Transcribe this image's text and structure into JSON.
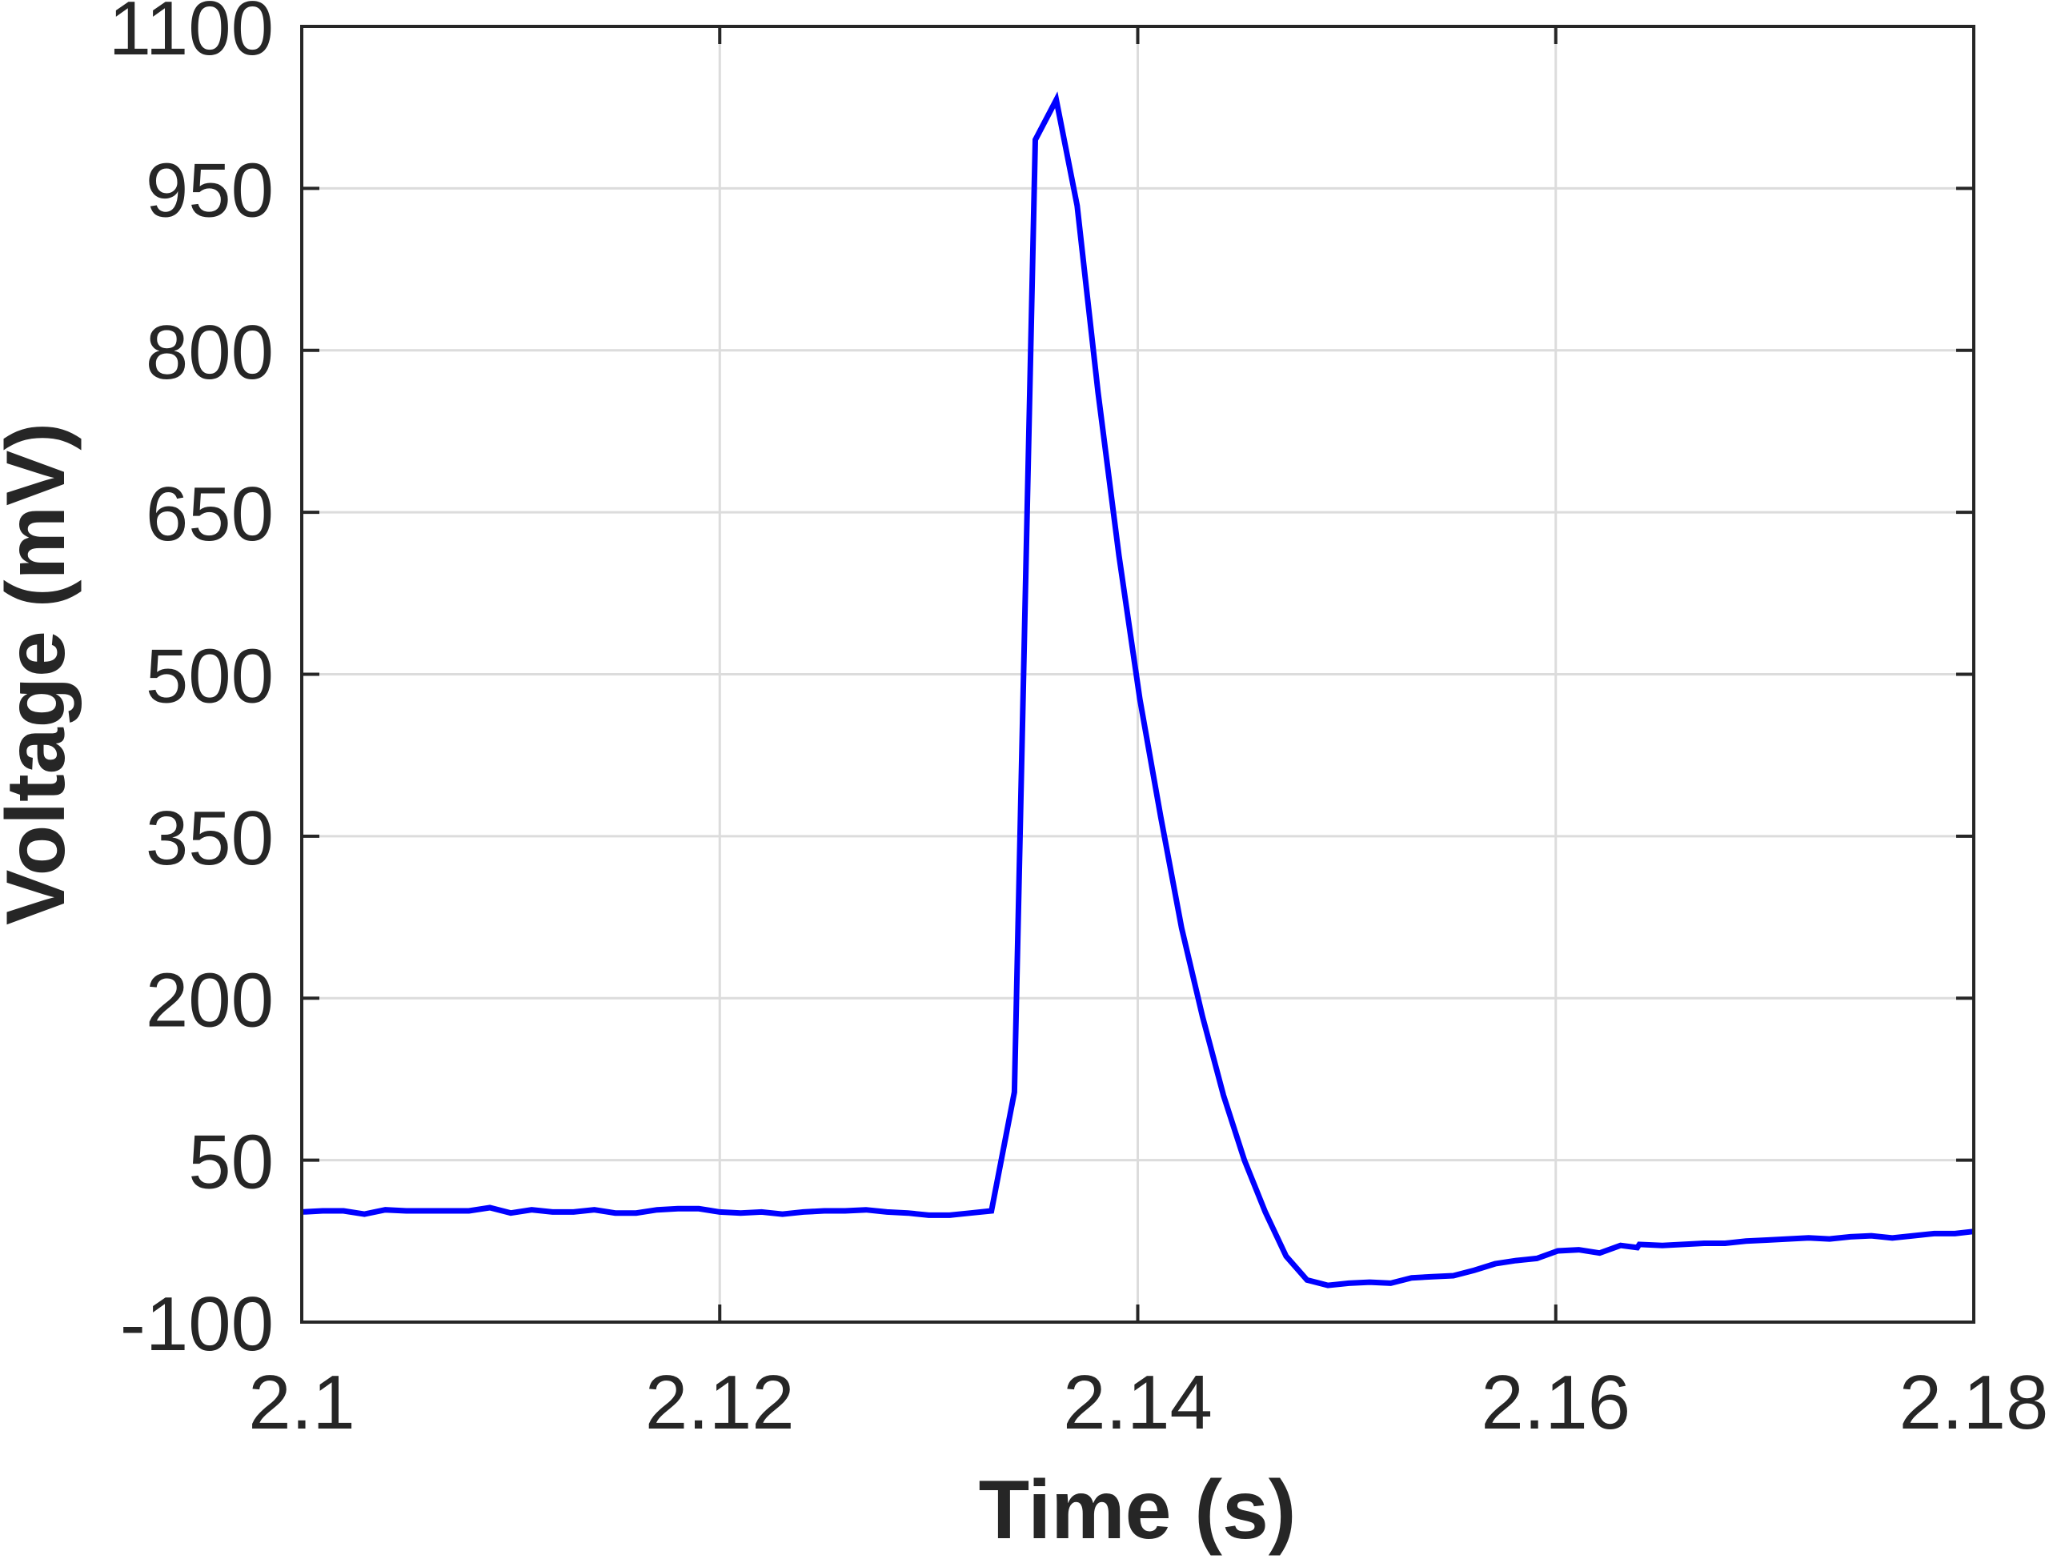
{
  "chart_data": {
    "type": "line",
    "title": "",
    "xlabel": "Time (s)",
    "ylabel": "Voltage (mV)",
    "xlim": [
      2.1,
      2.18
    ],
    "ylim": [
      -100,
      1100
    ],
    "xticks": [
      2.1,
      2.12,
      2.14,
      2.16,
      2.18
    ],
    "xtick_labels": [
      "2.1",
      "2.12",
      "2.14",
      "2.16",
      "2.18"
    ],
    "yticks": [
      -100,
      50,
      200,
      350,
      500,
      650,
      800,
      950,
      1100
    ],
    "ytick_labels": [
      "-100",
      "50",
      "200",
      "350",
      "500",
      "650",
      "800",
      "950",
      "1100"
    ],
    "grid": true,
    "legend": null,
    "series": [
      {
        "name": "Voltage",
        "color": "#0000ff",
        "x": [
          2.1,
          2.101,
          2.102,
          2.103,
          2.104,
          2.105,
          2.106,
          2.107,
          2.108,
          2.109,
          2.11,
          2.111,
          2.112,
          2.113,
          2.114,
          2.115,
          2.116,
          2.117,
          2.118,
          2.119,
          2.12,
          2.121,
          2.122,
          2.123,
          2.124,
          2.125,
          2.126,
          2.127,
          2.128,
          2.129,
          2.13,
          2.131,
          2.132,
          2.133,
          2.1341,
          2.1351,
          2.1361,
          2.1371,
          2.1381,
          2.1391,
          2.1401,
          2.1411,
          2.1421,
          2.1431,
          2.1441,
          2.1451,
          2.1461,
          2.1471,
          2.1481,
          2.1491,
          2.1501,
          2.1511,
          2.1521,
          2.1531,
          2.1541,
          2.1551,
          2.1561,
          2.1571,
          2.1581,
          2.1591,
          2.1601,
          2.1611,
          2.1621,
          2.1631,
          2.1639,
          2.164,
          2.1651,
          2.1661,
          2.1671,
          2.1681,
          2.1691,
          2.1701,
          2.1711,
          2.1721,
          2.1731,
          2.1741,
          2.1751,
          2.1761,
          2.1771,
          2.1781,
          2.1791,
          2.18
        ],
        "y": [
          2,
          3,
          3,
          0,
          4,
          3,
          3,
          3,
          3,
          6,
          1,
          4,
          2,
          2,
          4,
          1,
          1,
          4,
          5,
          5,
          2,
          1,
          2,
          0,
          2,
          3,
          3,
          4,
          2,
          1,
          -1,
          -1,
          1,
          3,
          113,
          995,
          1032,
          934,
          761,
          610,
          477,
          368,
          265,
          183,
          110,
          50,
          2,
          -39,
          -61,
          -66,
          -64,
          -63,
          -64,
          -59,
          -58,
          -57,
          -52,
          -46,
          -43,
          -41,
          -34,
          -33,
          -36,
          -29,
          -31,
          -28,
          -29,
          -28,
          -27,
          -27,
          -25,
          -24,
          -23,
          -22,
          -23,
          -21,
          -20,
          -22,
          -20,
          -18,
          -18,
          -16
        ]
      }
    ]
  }
}
